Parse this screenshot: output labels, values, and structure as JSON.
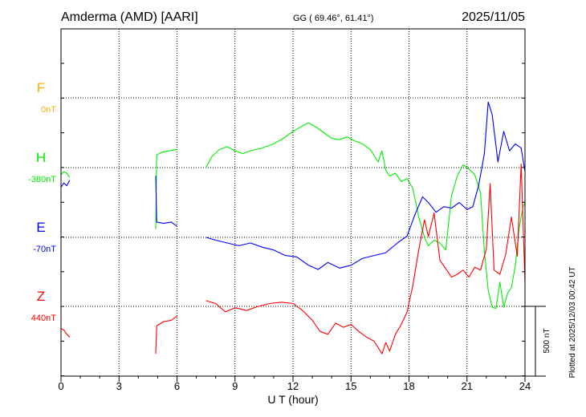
{
  "header": {
    "station": "Amderma (AMD)  [AARI]",
    "coords": "GG ( 69.46°,  61.41°)",
    "date": "2025/11/05"
  },
  "footer": {
    "plotted": "Plotted at 2025/12/03 00:42 UT",
    "scale_label": "500 nT"
  },
  "chart_data": {
    "type": "line",
    "xlabel": "U T (hour)",
    "xlim": [
      0,
      24
    ],
    "xticks": [
      0,
      3,
      6,
      9,
      12,
      15,
      18,
      21,
      24
    ],
    "scale_bar_nT": 500,
    "grid": true,
    "series": [
      {
        "name": "F",
        "baseline": "0nT",
        "color": "#ffb000",
        "segments": []
      },
      {
        "name": "H",
        "baseline": "-380nT",
        "color": "#00ee00",
        "segments": [
          {
            "x": [
              0,
              0.15,
              0.3,
              0.45
            ],
            "y": [
              -50,
              -30,
              -40,
              -70
            ]
          },
          {
            "x": [
              4.9,
              4.95,
              5.2,
              5.6,
              6.0
            ],
            "y": [
              -440,
              90,
              110,
              120,
              130
            ]
          },
          {
            "x": [
              7.5,
              7.8,
              8.2,
              8.6,
              9.0,
              9.4,
              9.8,
              10.4,
              11.0,
              11.5,
              12.0,
              12.5,
              12.8,
              13.2,
              13.6,
              14.0,
              14.4,
              14.8,
              15.2,
              15.6,
              16.0,
              16.4,
              16.6,
              16.8,
              17.0,
              17.3,
              17.6,
              17.9,
              18.2,
              18.5,
              18.8,
              19.0,
              19.3,
              19.6,
              19.9,
              20.2,
              20.5,
              20.8,
              21.1,
              21.4,
              21.7,
              21.9,
              22.1,
              22.3,
              22.5,
              22.7,
              22.9,
              23.1,
              23.3,
              23.5,
              23.7,
              23.9,
              24.0
            ],
            "y": [
              0,
              80,
              130,
              150,
              120,
              100,
              120,
              140,
              170,
              210,
              260,
              300,
              320,
              290,
              250,
              210,
              200,
              220,
              190,
              170,
              130,
              40,
              120,
              -20,
              -60,
              -40,
              -100,
              -80,
              -150,
              -350,
              -500,
              -560,
              -520,
              -540,
              -590,
              -200,
              -60,
              20,
              -10,
              -50,
              -180,
              -600,
              -880,
              -1000,
              -1010,
              -820,
              -1000,
              -900,
              -860,
              -700,
              -430,
              -280,
              -250
            ]
          }
        ]
      },
      {
        "name": "E",
        "baseline": "-70nT",
        "color": "#0000ff",
        "segments": [
          {
            "x": [
              0,
              0.15,
              0.3,
              0.45
            ],
            "y": [
              360,
              390,
              370,
              410
            ]
          },
          {
            "x": [
              4.9,
              4.95,
              5.3,
              5.7,
              6.0
            ],
            "y": [
              440,
              110,
              100,
              110,
              80
            ]
          },
          {
            "x": [
              7.5,
              8.0,
              8.6,
              9.2,
              9.8,
              10.4,
              11.0,
              11.6,
              12.2,
              12.8,
              13.3,
              13.8,
              14.4,
              15.0,
              15.6,
              16.2,
              16.8,
              17.4,
              17.9,
              18.3,
              18.7,
              19.0,
              19.4,
              19.8,
              20.2,
              20.6,
              21.0,
              21.3,
              21.6,
              21.9,
              22.1,
              22.3,
              22.6,
              22.9,
              23.2,
              23.5,
              23.8,
              24.0
            ],
            "y": [
              0,
              -20,
              -40,
              -60,
              -40,
              -70,
              -90,
              -130,
              -140,
              -200,
              -230,
              -180,
              -220,
              -200,
              -150,
              -130,
              -110,
              -40,
              10,
              160,
              290,
              250,
              180,
              220,
              210,
              250,
              200,
              220,
              370,
              600,
              970,
              880,
              540,
              760,
              620,
              670,
              640,
              470
            ]
          }
        ]
      },
      {
        "name": "Z",
        "baseline": "440nT",
        "color": "#ff0000",
        "segments": [
          {
            "x": [
              0,
              0.15,
              0.3,
              0.45
            ],
            "y": [
              -160,
              -170,
              -200,
              -220
            ]
          },
          {
            "x": [
              4.9,
              4.95,
              5.3,
              5.7,
              6.0
            ],
            "y": [
              -340,
              -140,
              -110,
              -100,
              -70
            ]
          },
          {
            "x": [
              7.5,
              8.0,
              8.5,
              9.0,
              9.6,
              10.2,
              10.8,
              11.4,
              12.0,
              12.5,
              13.0,
              13.4,
              13.8,
              14.2,
              14.6,
              15.0,
              15.4,
              15.8,
              16.2,
              16.6,
              16.8,
              17.0,
              17.3,
              17.6,
              17.9,
              18.2,
              18.5,
              18.8,
              19.0,
              19.3,
              19.6,
              19.9,
              20.2,
              20.5,
              20.8,
              21.1,
              21.4,
              21.7,
              22.0,
              22.2,
              22.4,
              22.7,
              23.0,
              23.3,
              23.6,
              23.8,
              24.0
            ],
            "y": [
              40,
              20,
              -40,
              -10,
              -30,
              0,
              20,
              30,
              20,
              -30,
              -100,
              -180,
              -200,
              -120,
              -150,
              -130,
              -180,
              -220,
              -250,
              -340,
              -260,
              -320,
              -200,
              -130,
              -40,
              150,
              400,
              620,
              500,
              670,
              330,
              270,
              210,
              230,
              260,
              210,
              280,
              260,
              410,
              880,
              260,
              230,
              370,
              640,
              360,
              1020,
              170
            ]
          }
        ]
      }
    ]
  }
}
